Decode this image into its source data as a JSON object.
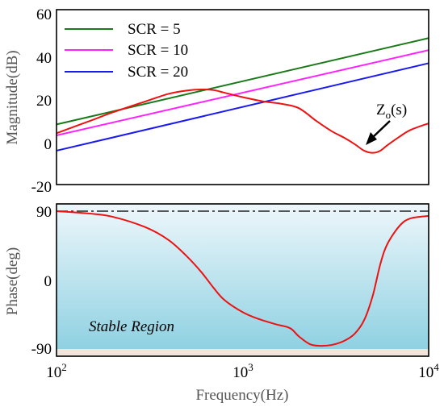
{
  "chart_data": [
    {
      "type": "line",
      "panel": "magnitude",
      "ylabel": "Magnitude(dB)",
      "xscale": "log",
      "xlim": [
        100,
        10000
      ],
      "ylim": [
        -20,
        60
      ],
      "yticks": [
        "60",
        "40",
        "20",
        "0",
        "-20"
      ],
      "legend": "top-left",
      "series": [
        {
          "name": "SCR = 5",
          "color": "#1a7a1a",
          "x": [
            100,
            10000
          ],
          "y": [
            7.5,
            47
          ]
        },
        {
          "name": "SCR = 10",
          "color": "#ff22ff",
          "x": [
            100,
            10000
          ],
          "y": [
            2.5,
            41.5
          ]
        },
        {
          "name": "SCR = 20",
          "color": "#1a1aee",
          "x": [
            100,
            10000
          ],
          "y": [
            -4.5,
            35.5
          ]
        },
        {
          "name": "Zo(s)",
          "color": "#ee1111",
          "x": [
            100,
            150,
            200,
            300,
            400,
            500,
            600,
            700,
            800,
            1000,
            1300,
            1600,
            2000,
            2500,
            3000,
            3500,
            4000,
            4500,
            5000,
            5500,
            6000,
            7000,
            8000,
            10000
          ],
          "y": [
            3.5,
            9,
            13,
            18,
            21.5,
            23,
            23.5,
            23.2,
            22,
            20,
            18,
            17,
            15,
            9,
            4.5,
            1.5,
            -1.5,
            -4.5,
            -5.5,
            -4.5,
            -2,
            2,
            5,
            8
          ]
        }
      ],
      "annotation": {
        "base": "Z",
        "sub": "o",
        "suffix": "(s)"
      }
    },
    {
      "type": "line",
      "panel": "phase",
      "xlabel": "Frequency(Hz)",
      "ylabel": "Phase(deg)",
      "xscale": "log",
      "xlim": [
        100,
        10000
      ],
      "ylim": [
        -95,
        95
      ],
      "yticks": [
        "90",
        "0",
        "-90"
      ],
      "xticks": [
        {
          "base": "10",
          "exp": "2"
        },
        {
          "base": "10",
          "exp": "3"
        },
        {
          "base": "10",
          "exp": "4"
        }
      ],
      "region_label": "Stable Region",
      "reference_line": {
        "y": 90,
        "style": "dash-dot"
      },
      "series": [
        {
          "name": "Zo(s)",
          "color": "#ee1111",
          "x": [
            100,
            150,
            200,
            300,
            400,
            500,
            600,
            700,
            800,
            1000,
            1200,
            1500,
            1800,
            2000,
            2300,
            2600,
            3000,
            3500,
            4000,
            4500,
            5000,
            5500,
            6000,
            7000,
            8000,
            10000
          ],
          "y": [
            86,
            83,
            79,
            66,
            50,
            30,
            10,
            -10,
            -25,
            -40,
            -48,
            -55,
            -60,
            -70,
            -80,
            -82,
            -81,
            -76,
            -67,
            -50,
            -20,
            20,
            45,
            68,
            77,
            80
          ]
        }
      ]
    }
  ],
  "colors": {
    "band_top": "#eef7fb",
    "band_bottom": "#8fd1e2",
    "floor": "#f2e6dc"
  }
}
